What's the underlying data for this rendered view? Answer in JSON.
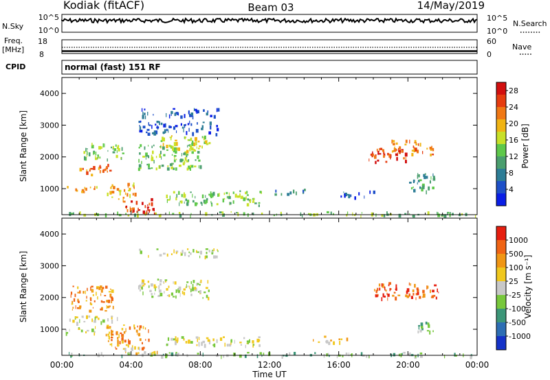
{
  "header": {
    "station": "Kodiak (fitACF)",
    "beam": "Beam 03",
    "date": "14/May/2019"
  },
  "panels": {
    "nsky": {
      "left_label": "N.Sky",
      "left_top": "10^5",
      "left_bottom": "10^0",
      "right_label": "N.Search",
      "right_top": "10^5",
      "right_bottom": "10^0"
    },
    "freq": {
      "left_label_1": "Freq.",
      "left_label_2": "[MHz]",
      "left_top": "18",
      "left_bottom": "8",
      "right_label": "Nave",
      "right_top": "60",
      "right_bottom": "0"
    },
    "cpid": {
      "label": "CPID",
      "value": "normal (fast) 151 RF"
    }
  },
  "chart_data": [
    {
      "type": "heatmap",
      "name": "power",
      "ylabel": "Slant Range [km]",
      "xlabel": "",
      "x_ticks": [
        "00:00",
        "04:00",
        "08:00",
        "12:00",
        "16:00",
        "20:00",
        "00:00"
      ],
      "xlim_hours": [
        0,
        24
      ],
      "y_ticks": [
        1000,
        2000,
        3000,
        4000
      ],
      "ylim": [
        180,
        4500
      ],
      "colorbar": {
        "label": "Power [dB]",
        "ticks": [
          4,
          8,
          12,
          16,
          20,
          24,
          28
        ],
        "colors": [
          "#0a1ee6",
          "#1e50c8",
          "#2d7d96",
          "#4a9e6e",
          "#5ec84a",
          "#c8e028",
          "#f0b414",
          "#f07814",
          "#e63c0f",
          "#d20f0f"
        ]
      },
      "regions": [
        {
          "t": [
            0.1,
            24
          ],
          "r": [
            180,
            290
          ],
          "level": 4
        },
        {
          "t": [
            0.2,
            2.0
          ],
          "r": [
            900,
            1100
          ],
          "level": 6
        },
        {
          "t": [
            1.0,
            2.8
          ],
          "r": [
            1450,
            1800
          ],
          "level": 7
        },
        {
          "t": [
            1.2,
            3.5
          ],
          "r": [
            1950,
            2500
          ],
          "level": 4
        },
        {
          "t": [
            2.6,
            4.2
          ],
          "r": [
            650,
            1200
          ],
          "level": 6
        },
        {
          "t": [
            3.5,
            5.2
          ],
          "r": [
            300,
            700
          ],
          "level": 8
        },
        {
          "t": [
            4.0,
            5.5
          ],
          "r": [
            250,
            420
          ],
          "level": 9
        },
        {
          "t": [
            4.4,
            8.0
          ],
          "r": [
            1650,
            2400
          ],
          "level": 4
        },
        {
          "t": [
            4.4,
            9.0
          ],
          "r": [
            3300,
            3550
          ],
          "level": 1
        },
        {
          "t": [
            4.4,
            9.0
          ],
          "r": [
            2750,
            3150
          ],
          "level": 1
        },
        {
          "t": [
            5.5,
            8.5
          ],
          "r": [
            2200,
            2700
          ],
          "level": 5
        },
        {
          "t": [
            6.0,
            11.5
          ],
          "r": [
            500,
            950
          ],
          "level": 4
        },
        {
          "t": [
            12.0,
            14.0
          ],
          "r": [
            850,
            1000
          ],
          "level": 2
        },
        {
          "t": [
            16.0,
            18.0
          ],
          "r": [
            750,
            950
          ],
          "level": 1
        },
        {
          "t": [
            17.7,
            20.0
          ],
          "r": [
            1850,
            2300
          ],
          "level": 8
        },
        {
          "t": [
            19.0,
            21.5
          ],
          "r": [
            2100,
            2550
          ],
          "level": 7
        },
        {
          "t": [
            20.0,
            21.5
          ],
          "r": [
            900,
            1500
          ],
          "level": 3
        }
      ]
    },
    {
      "type": "heatmap",
      "name": "velocity",
      "ylabel": "Slant Range [km]",
      "xlabel": "Time UT",
      "x_ticks": [
        "00:00",
        "04:00",
        "08:00",
        "12:00",
        "16:00",
        "20:00",
        "00:00"
      ],
      "xlim_hours": [
        0,
        24
      ],
      "y_ticks": [
        1000,
        2000,
        3000,
        4000
      ],
      "ylim": [
        180,
        4500
      ],
      "colorbar": {
        "label": "Velocity [m s⁻¹]",
        "ticks": [
          1000,
          500,
          100,
          25,
          -25,
          -100,
          -500,
          -1000
        ],
        "colors": [
          "#1432c8",
          "#2d6eb4",
          "#3c9678",
          "#78c83c",
          "#c8c8c8",
          "#f0c81e",
          "#f09614",
          "#f06414",
          "#e61e0f"
        ]
      },
      "regions": [
        {
          "t": [
            0.1,
            24
          ],
          "r": [
            180,
            290
          ],
          "level": 3
        },
        {
          "t": [
            0.0,
            2.0
          ],
          "r": [
            900,
            1100
          ],
          "level": 4
        },
        {
          "t": [
            0.3,
            3.2
          ],
          "r": [
            1200,
            1450
          ],
          "level": 4
        },
        {
          "t": [
            0.5,
            3.0
          ],
          "r": [
            1600,
            2400
          ],
          "level": 6
        },
        {
          "t": [
            2.5,
            5.0
          ],
          "r": [
            400,
            1200
          ],
          "level": 6
        },
        {
          "t": [
            3.5,
            5.5
          ],
          "r": [
            250,
            500
          ],
          "level": 5
        },
        {
          "t": [
            4.4,
            9.0
          ],
          "r": [
            3300,
            3550
          ],
          "level": 4
        },
        {
          "t": [
            4.4,
            8.5
          ],
          "r": [
            2000,
            2600
          ],
          "level": 4
        },
        {
          "t": [
            6.0,
            11.5
          ],
          "r": [
            500,
            800
          ],
          "level": 4
        },
        {
          "t": [
            14.5,
            16.5
          ],
          "r": [
            600,
            800
          ],
          "level": 5
        },
        {
          "t": [
            18.0,
            21.8
          ],
          "r": [
            2000,
            2500
          ],
          "level": 7
        },
        {
          "t": [
            20.5,
            21.5
          ],
          "r": [
            900,
            1300
          ],
          "level": 3
        }
      ]
    }
  ]
}
